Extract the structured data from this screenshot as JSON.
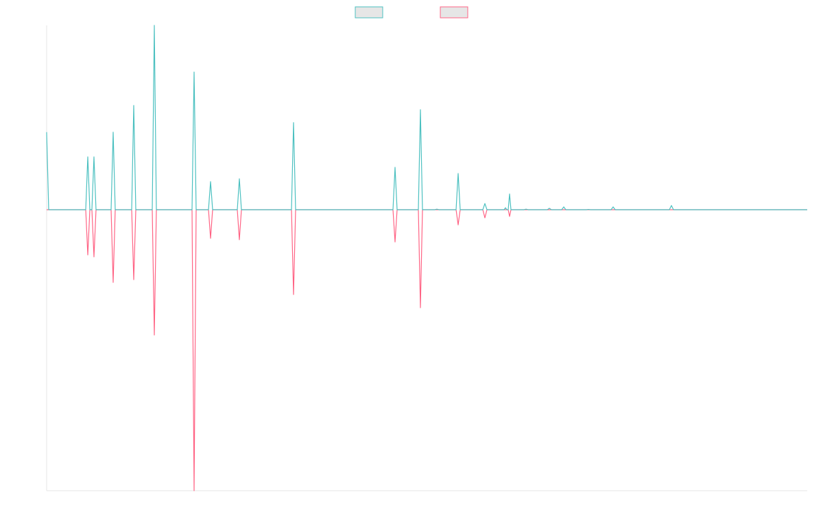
{
  "chart_data": {
    "type": "line",
    "legend": "top",
    "xlim": [
      0,
      1109
    ],
    "ylim": [
      -100,
      65.6
    ],
    "x": [
      0,
      3,
      57,
      60,
      63,
      66,
      69,
      72,
      94,
      97,
      100,
      124,
      127,
      130,
      154,
      157,
      160,
      212,
      215,
      218,
      236,
      239,
      242,
      278,
      281,
      284,
      357,
      360,
      363,
      505,
      508,
      511,
      542,
      545,
      548,
      566,
      569,
      572,
      597,
      600,
      603,
      636,
      639,
      642,
      667,
      669,
      671,
      673,
      675,
      677,
      696,
      699,
      702,
      730,
      733,
      736,
      751,
      754,
      757,
      787,
      790,
      793,
      823,
      826,
      829,
      908,
      911,
      914,
      1109
    ],
    "series": [
      {
        "color": "#4bc0c0",
        "values": [
          27.6,
          0,
          0,
          18.8,
          0,
          0,
          18.8,
          0,
          0,
          27.6,
          0,
          0,
          37.1,
          0,
          0,
          65.6,
          0,
          0,
          49.0,
          0,
          0,
          10.0,
          0,
          0,
          11.0,
          0,
          0,
          31.0,
          0,
          0,
          15.1,
          0,
          0,
          35.6,
          0,
          0,
          0.2,
          0,
          0,
          12.9,
          0,
          0,
          2.2,
          0,
          0,
          0.7,
          0,
          0,
          5.6,
          0,
          0,
          0.2,
          0,
          0,
          0.5,
          0,
          0,
          1.0,
          0,
          0,
          0.1,
          0,
          0,
          1.0,
          0,
          0,
          1.5,
          0,
          0
        ]
      },
      {
        "color": "#ff6384",
        "values": [
          0,
          0,
          0,
          -16.1,
          0,
          0,
          -16.8,
          0,
          0,
          -25.9,
          0,
          0,
          -24.9,
          0,
          0,
          -44.6,
          0,
          0,
          -100,
          0,
          0,
          -10.2,
          0,
          0,
          -10.7,
          0,
          0,
          -30.2,
          0,
          0,
          -11.5,
          0,
          0,
          -34.9,
          0,
          0,
          0,
          0,
          0,
          -5.4,
          0,
          0,
          -2.9,
          0,
          0,
          0,
          0,
          0,
          -2.4,
          0,
          0,
          0,
          0,
          0,
          0,
          0,
          0,
          0,
          0,
          0,
          0,
          0,
          0,
          0,
          0,
          0,
          0,
          0,
          0
        ]
      }
    ]
  }
}
